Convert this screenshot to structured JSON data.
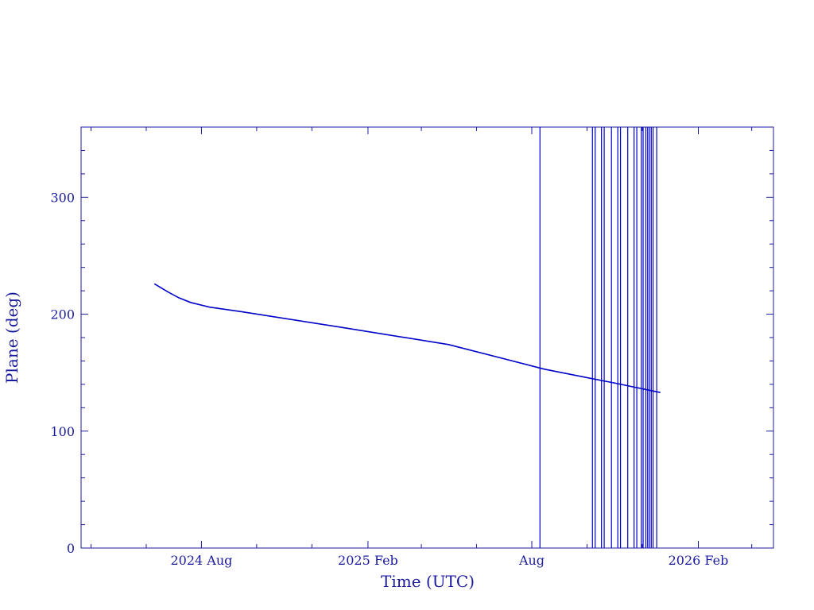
{
  "chart_data": {
    "type": "line",
    "title": "",
    "xlabel": "Time (UTC)",
    "ylabel": "Plane (deg)",
    "xlim": [
      "2024-03-21",
      "2026-04-25"
    ],
    "ylim": [
      0,
      360
    ],
    "colors": {
      "axis": "#1a1a9c",
      "series": "#0000c8"
    },
    "grid": false,
    "x_ticks": [
      {
        "date": "2024-08-01",
        "label": "2024 Aug"
      },
      {
        "date": "2025-02-01",
        "label": "2025 Feb"
      },
      {
        "date": "2025-08-01",
        "label": "Aug"
      },
      {
        "date": "2026-02-01",
        "label": "2026 Feb"
      }
    ],
    "y_ticks": [
      {
        "value": 0,
        "label": "0"
      },
      {
        "value": 100,
        "label": "100"
      },
      {
        "value": 200,
        "label": "200"
      },
      {
        "value": 300,
        "label": "300"
      }
    ],
    "series": [
      {
        "points": [
          {
            "x": "2024-06-10",
            "y": 226
          },
          {
            "x": "2024-06-25",
            "y": 219
          },
          {
            "x": "2024-07-07",
            "y": 214
          },
          {
            "x": "2024-07-20",
            "y": 210
          },
          {
            "x": "2024-08-10",
            "y": 206
          },
          {
            "x": "2024-09-15",
            "y": 202
          },
          {
            "x": "2025-01-01",
            "y": 189
          },
          {
            "x": "2025-05-01",
            "y": 174
          },
          {
            "x": "2025-08-15",
            "y": 153
          },
          {
            "x": "2025-11-01",
            "y": 141
          },
          {
            "x": "2025-12-21",
            "y": 133
          }
        ]
      }
    ],
    "vertical_lines": [
      "2025-08-10",
      "2025-10-07",
      "2025-10-10",
      "2025-10-17",
      "2025-10-20",
      "2025-10-28",
      "2025-11-04",
      "2025-11-07",
      "2025-11-15",
      "2025-11-22",
      "2025-11-25",
      "2025-11-30",
      "2025-12-02",
      "2025-12-05",
      "2025-12-07",
      "2025-12-09",
      "2025-12-11",
      "2025-12-13",
      "2025-12-17"
    ]
  }
}
